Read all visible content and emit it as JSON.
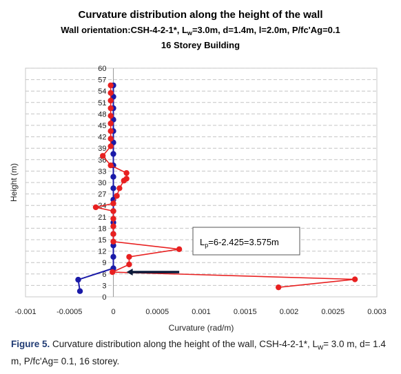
{
  "chart_data": {
    "type": "scatter",
    "title_lines": [
      "Curvature distribution along the height of the wall",
      "Wall orientation:CSH-4-2-1*, L",
      "16 Storey Building"
    ],
    "title_line2_sub": "w",
    "title_line2_rest": "=3.0m, d=1.4m, l=2.0m, P/fc'Ag=0.1",
    "xlabel": "Curvature (rad/m)",
    "ylabel": "Height (m)",
    "xlim": [
      -0.001,
      0.003
    ],
    "ylim": [
      0,
      60
    ],
    "x_ticks": [
      "-0.001",
      "-0.0005",
      "0",
      "0.0005",
      "0.001",
      "0.0015",
      "0.002",
      "0.0025",
      "0.003"
    ],
    "x_tick_values": [
      -0.001,
      -0.0005,
      0,
      0.0005,
      0.001,
      0.0015,
      0.002,
      0.0025,
      0.003
    ],
    "y_ticks": [
      "0",
      "3",
      "6",
      "9",
      "12",
      "15",
      "18",
      "21",
      "24",
      "27",
      "30",
      "33",
      "36",
      "39",
      "42",
      "45",
      "48",
      "51",
      "54",
      "57",
      "60"
    ],
    "y_tick_values": [
      0,
      3,
      6,
      9,
      12,
      15,
      18,
      21,
      24,
      27,
      30,
      33,
      36,
      39,
      42,
      45,
      48,
      51,
      54,
      57,
      60
    ],
    "grid": "horizontal dashed",
    "series": [
      {
        "color": "#1a1aa8",
        "points": [
          [
            -0.00038,
            1.5
          ],
          [
            -0.0004,
            4.5
          ],
          [
            0,
            7.5
          ],
          [
            0,
            10.5
          ],
          [
            0,
            13.5
          ],
          [
            0,
            16.5
          ],
          [
            0,
            19.5
          ],
          [
            0,
            22.5
          ],
          [
            0,
            25.5
          ],
          [
            0,
            28.5
          ],
          [
            0,
            31.5
          ],
          [
            0,
            34.5
          ],
          [
            0,
            37.5
          ],
          [
            0,
            40.5
          ],
          [
            0,
            43.5
          ],
          [
            0,
            46.5
          ],
          [
            0,
            49.5
          ],
          [
            0,
            52.5
          ],
          [
            0,
            55.5
          ]
        ]
      },
      {
        "color": "#e82020",
        "points": [
          [
            0.00188,
            2.5
          ],
          [
            0.00275,
            4.6
          ],
          [
            -1e-05,
            6.5
          ],
          [
            0.00018,
            8.5
          ],
          [
            0.00018,
            10.5
          ],
          [
            0.00075,
            12.5
          ],
          [
            0,
            14.5
          ],
          [
            0,
            16.5
          ],
          [
            0,
            18.5
          ],
          [
            0,
            20.5
          ],
          [
            0,
            22.5
          ],
          [
            -0.0002,
            23.5
          ],
          [
            0,
            24.5
          ],
          [
            4e-05,
            26.5
          ],
          [
            7e-05,
            28.5
          ],
          [
            0.00012,
            30.5
          ],
          [
            0.00015,
            32.5
          ],
          [
            0.00015,
            31.0
          ],
          [
            -3e-05,
            34.5
          ],
          [
            -0.00012,
            37.0
          ],
          [
            -3e-05,
            39.5
          ],
          [
            -3e-05,
            41.5
          ],
          [
            -3e-05,
            43.5
          ],
          [
            -3e-05,
            45.5
          ],
          [
            -3e-05,
            47.5
          ],
          [
            -3e-05,
            49.5
          ],
          [
            -3e-05,
            51.5
          ],
          [
            -3e-05,
            53.5
          ],
          [
            -3e-05,
            55.5
          ]
        ]
      }
    ],
    "red_line_order": [
      [
        0.00188,
        2.5
      ],
      [
        0.00275,
        4.6
      ],
      [
        -1e-05,
        6.5
      ],
      [
        0.00018,
        8.5
      ],
      [
        0.00018,
        10.5
      ],
      [
        0.00075,
        12.5
      ],
      [
        0,
        14.5
      ],
      [
        0,
        16.5
      ],
      [
        0,
        18.5
      ],
      [
        0,
        20.5
      ],
      [
        0,
        22.5
      ],
      [
        -0.0002,
        23.5
      ],
      [
        0,
        24.5
      ],
      [
        4e-05,
        26.5
      ],
      [
        7e-05,
        28.5
      ],
      [
        0.00012,
        30.5
      ],
      [
        0.00015,
        31.0
      ],
      [
        0.00015,
        32.5
      ],
      [
        -3e-05,
        34.5
      ],
      [
        -0.00012,
        37.0
      ],
      [
        -3e-05,
        39.5
      ],
      [
        -3e-05,
        41.5
      ],
      [
        -3e-05,
        43.5
      ],
      [
        -3e-05,
        45.5
      ],
      [
        -3e-05,
        47.5
      ],
      [
        -3e-05,
        49.5
      ],
      [
        -3e-05,
        51.5
      ],
      [
        -3e-05,
        53.5
      ],
      [
        -3e-05,
        55.5
      ]
    ],
    "annotation": {
      "text_main": "L",
      "text_sub": "p",
      "text_rest": "=6-2.425=3.575m",
      "arrow_from": [
        0.00075,
        6.5
      ],
      "arrow_to": [
        0.00015,
        6.5
      ]
    }
  },
  "caption": {
    "label": "Figure 5.",
    "text_a": " Curvature distribution along the height of the wall, CSH-4-2-1*, L",
    "sub": "w",
    "text_b": "= 3.0 m, d= 1.4 m, P/fc'Ag= 0.1, 16 storey."
  }
}
